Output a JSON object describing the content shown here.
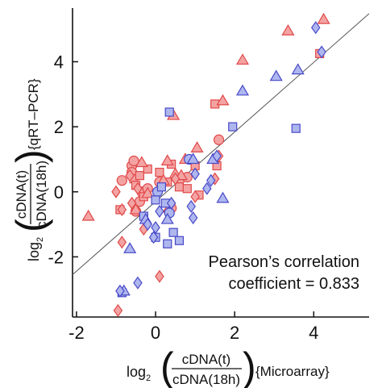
{
  "chart_data": {
    "type": "scatter",
    "title": "",
    "xlabel": {
      "log": "log",
      "sub": "2",
      "numerator": "cDNA(t)",
      "denominator": "cDNA(18h)",
      "tag": "{Microarray}"
    },
    "ylabel": {
      "log": "log",
      "sub": "2",
      "numerator": "cDNA(t)",
      "denominator": "cDNA(18h)",
      "tag": "{qRT–PCR}"
    },
    "xlim": [
      -2.1,
      5.4
    ],
    "ylim": [
      -3.85,
      5.65
    ],
    "xticks": [
      -2,
      0,
      2,
      4
    ],
    "xtick_labels": [
      "-2",
      "0",
      "2",
      "4"
    ],
    "yticks": [
      -2,
      0,
      2,
      4
    ],
    "ytick_labels": [
      "-2",
      "0",
      "2",
      "4"
    ],
    "grid": false,
    "legend": "none",
    "fit_line": {
      "slope": 1.07,
      "intercept": -0.3
    },
    "annotation": [
      "Pearson’s correlation",
      "coefficient = 0.833"
    ],
    "colors": {
      "red_fill": "#f4a3a3",
      "red_edge": "#e04848",
      "blue_fill": "#aeb6ee",
      "blue_edge": "#4848c8"
    },
    "series": [
      {
        "color": "red",
        "marker": "circle",
        "points": [
          [
            -0.85,
            0.35
          ],
          [
            -0.6,
            0.8
          ],
          [
            -0.6,
            0.6
          ],
          [
            -0.55,
            0.95
          ],
          [
            -0.5,
            -0.6
          ],
          [
            -0.4,
            -0.3
          ],
          [
            -0.35,
            0.0
          ],
          [
            -0.2,
            0.1
          ],
          [
            0.1,
            0.3
          ],
          [
            0.4,
            -0.5
          ],
          [
            0.6,
            0.35
          ],
          [
            0.8,
            0.45
          ],
          [
            1.6,
            1.6
          ]
        ]
      },
      {
        "color": "red",
        "marker": "square",
        "points": [
          [
            -0.9,
            -0.55
          ],
          [
            -0.55,
            0.4
          ],
          [
            -0.5,
            0.2
          ],
          [
            -0.4,
            0.5
          ],
          [
            -0.3,
            -0.15
          ],
          [
            -0.2,
            0.7
          ],
          [
            0.1,
            0.6
          ],
          [
            0.3,
            0.3
          ],
          [
            0.4,
            0.85
          ],
          [
            0.6,
            0.15
          ],
          [
            0.8,
            0.1
          ],
          [
            1.0,
            0.8
          ],
          [
            1.1,
            -0.1
          ],
          [
            1.5,
            2.7
          ],
          [
            1.55,
            0.8
          ],
          [
            4.15,
            4.25
          ]
        ]
      },
      {
        "color": "red",
        "marker": "triangle",
        "points": [
          [
            -1.7,
            -0.75
          ],
          [
            -0.5,
            -0.55
          ],
          [
            -0.35,
            0.9
          ],
          [
            -0.2,
            -0.05
          ],
          [
            0.2,
            0.35
          ],
          [
            0.3,
            0.95
          ],
          [
            0.45,
            2.35
          ],
          [
            0.5,
            0.55
          ],
          [
            0.65,
            0.5
          ],
          [
            0.75,
            1.0
          ],
          [
            1.05,
            1.35
          ],
          [
            1.7,
            2.8
          ],
          [
            2.2,
            4.05
          ],
          [
            3.35,
            4.95
          ],
          [
            4.25,
            5.3
          ]
        ]
      },
      {
        "color": "red",
        "marker": "diamond",
        "points": [
          [
            -1.0,
            0.0
          ],
          [
            -0.85,
            -1.55
          ],
          [
            -0.85,
            -0.55
          ],
          [
            -0.65,
            0.5
          ],
          [
            -0.6,
            -0.35
          ],
          [
            -0.45,
            0.1
          ],
          [
            -0.3,
            -1.15
          ],
          [
            0.1,
            -2.6
          ],
          [
            0.3,
            -0.6
          ],
          [
            0.5,
            0.4
          ],
          [
            1.0,
            -0.15
          ],
          [
            1.5,
            0.4
          ],
          [
            1.6,
            1.1
          ],
          [
            -0.95,
            -3.65
          ]
        ]
      },
      {
        "color": "blue",
        "marker": "circle",
        "points": [
          [
            0.05,
            0.0
          ],
          [
            0.35,
            -0.65
          ],
          [
            0.85,
            1.0
          ]
        ]
      },
      {
        "color": "blue",
        "marker": "square",
        "points": [
          [
            -0.85,
            -3.1
          ],
          [
            -0.3,
            -0.75
          ],
          [
            0.0,
            -1.4
          ],
          [
            0.0,
            -0.25
          ],
          [
            0.15,
            0.15
          ],
          [
            0.25,
            -0.35
          ],
          [
            0.3,
            -1.6
          ],
          [
            0.35,
            2.45
          ],
          [
            0.45,
            -1.25
          ],
          [
            0.6,
            -1.5
          ],
          [
            1.95,
            2.0
          ],
          [
            3.55,
            1.95
          ]
        ]
      },
      {
        "color": "blue",
        "marker": "triangle",
        "points": [
          [
            -0.8,
            -3.05
          ],
          [
            -0.65,
            -1.75
          ],
          [
            -0.25,
            -0.85
          ],
          [
            0.3,
            -0.85
          ],
          [
            0.95,
            1.0
          ],
          [
            1.45,
            1.0
          ],
          [
            1.7,
            -0.2
          ],
          [
            2.2,
            3.1
          ],
          [
            3.05,
            3.55
          ],
          [
            3.6,
            3.75
          ]
        ]
      },
      {
        "color": "blue",
        "marker": "diamond",
        "points": [
          [
            -0.9,
            -3.05
          ],
          [
            -0.45,
            -2.8
          ],
          [
            -0.2,
            -1.0
          ],
          [
            -0.05,
            -1.4
          ],
          [
            0.0,
            -1.1
          ],
          [
            0.1,
            -0.6
          ],
          [
            0.4,
            -0.35
          ],
          [
            0.9,
            -0.45
          ],
          [
            0.95,
            -0.8
          ],
          [
            1.0,
            0.55
          ],
          [
            1.3,
            0.1
          ],
          [
            1.4,
            0.35
          ],
          [
            1.55,
            1.1
          ],
          [
            4.05,
            5.05
          ],
          [
            4.2,
            4.3
          ]
        ]
      }
    ]
  }
}
